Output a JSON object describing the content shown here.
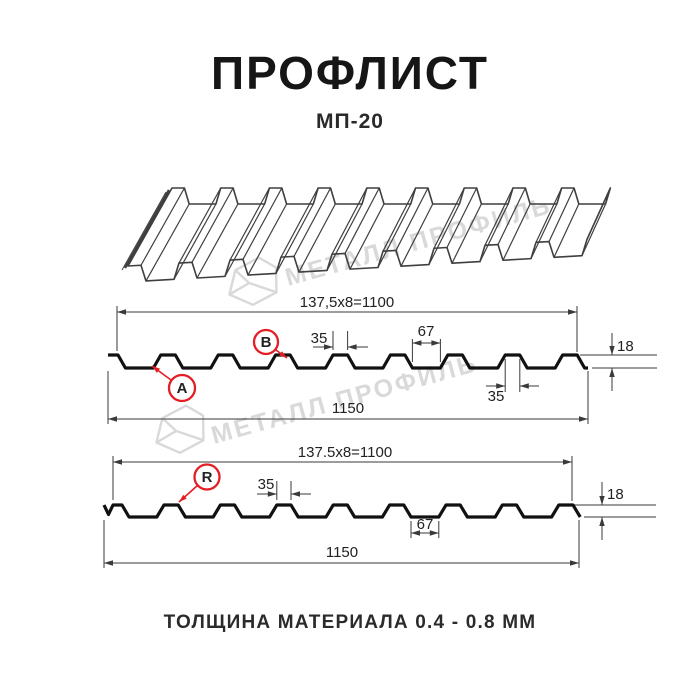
{
  "header": {
    "title": "ПРОФЛИСТ",
    "subtitle": "МП-20"
  },
  "footer": {
    "thickness_note": "ТОЛЩИНА МАТЕРИАЛА 0.4 - 0.8 ММ"
  },
  "watermark": {
    "text": "МЕТАЛЛ ПРОФИЛЬ"
  },
  "colors": {
    "accent_red": "#e31e24",
    "drawing_line": "#111111",
    "dim_line": "#3a3a3a",
    "dim_text": "#222222",
    "watermark_gray": "#d9d9d9",
    "sketch_line": "#3f3f3f"
  },
  "profile_view_top": {
    "dim_modules": "137,5x8=1100",
    "dim_overall": "1150",
    "dim_crest_width": "35",
    "dim_trough_width": "67",
    "dim_crest_width_2": "35",
    "dim_height": "18",
    "marker_a": "A",
    "marker_b": "B"
  },
  "profile_view_bottom": {
    "dim_modules": "137.5x8=1100",
    "dim_overall": "1150",
    "dim_crest_width": "35",
    "dim_trough_width": "67",
    "dim_height": "18",
    "marker_r": "R"
  }
}
